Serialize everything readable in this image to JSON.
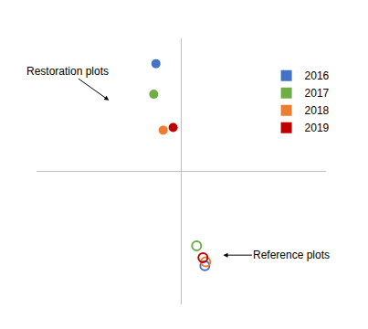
{
  "chart_data": {
    "type": "scatter",
    "groups": [
      {
        "label": "Restoration plots",
        "marker": "filled"
      },
      {
        "label": "Reference plots",
        "marker": "open"
      }
    ],
    "series": [
      {
        "name": "2016",
        "color": "#4472c4",
        "x": [
          -0.175,
          0.163
        ],
        "y": [
          0.81,
          -0.71
        ]
      },
      {
        "name": "2017",
        "color": "#70ad47",
        "x": [
          -0.19,
          0.106
        ],
        "y": [
          0.58,
          -0.56
        ]
      },
      {
        "name": "2018",
        "color": "#ed7d31",
        "x": [
          -0.125,
          0.169
        ],
        "y": [
          0.31,
          -0.68
        ]
      },
      {
        "name": "2019",
        "color": "#c00000",
        "x": [
          -0.056,
          0.15
        ],
        "y": [
          0.33,
          -0.65
        ]
      }
    ],
    "xlim": [
      -1,
      1
    ],
    "ylim": [
      -1,
      1
    ],
    "tick_labels": false,
    "grid": false,
    "legend": "upper right"
  }
}
